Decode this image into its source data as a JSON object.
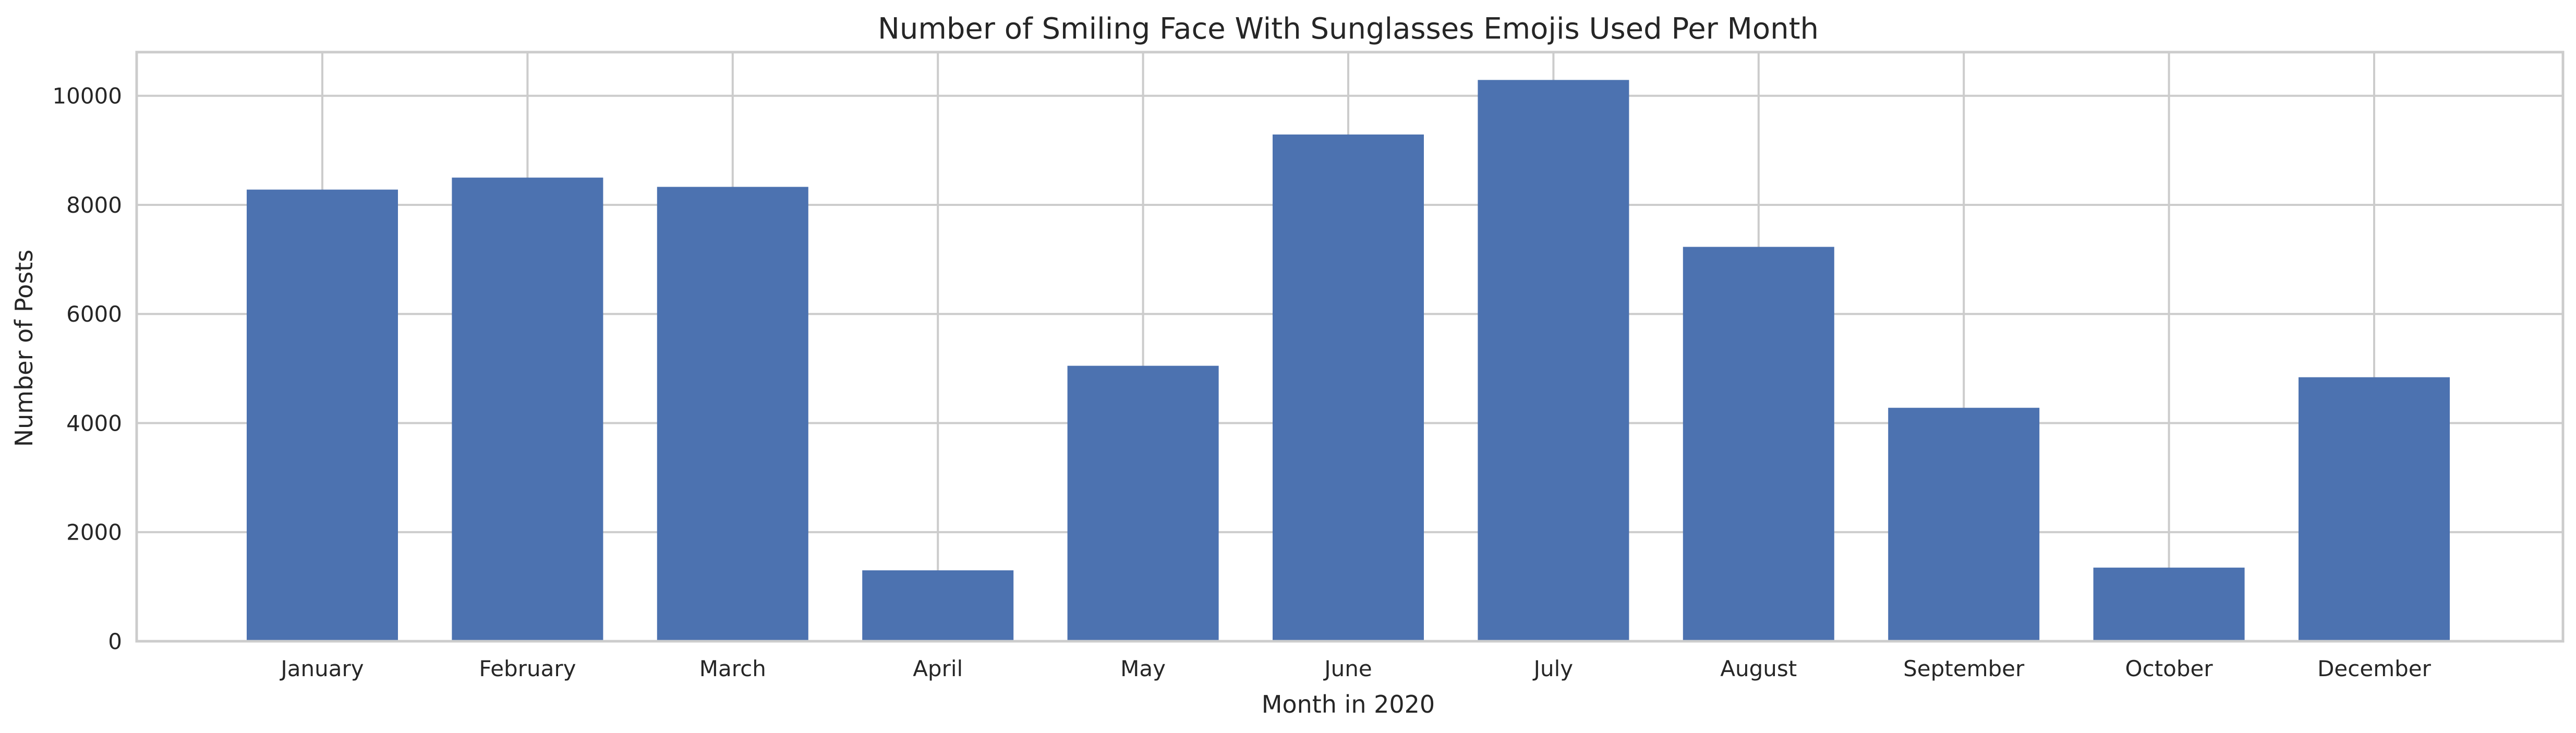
{
  "chart_data": {
    "type": "bar",
    "title": "Number of Smiling Face With Sunglasses Emojis Used Per Month",
    "xlabel": "Month in 2020",
    "ylabel": "Number of Posts",
    "categories": [
      "January",
      "February",
      "March",
      "April",
      "May",
      "June",
      "July",
      "August",
      "September",
      "October",
      "December"
    ],
    "values": [
      8280,
      8500,
      8330,
      1300,
      5050,
      9290,
      10290,
      7230,
      4280,
      1350,
      4840
    ],
    "ylim": [
      0,
      10800
    ],
    "yticks": [
      0,
      2000,
      4000,
      6000,
      8000,
      10000
    ],
    "grid": true,
    "bar_color": "#4c72b0",
    "background": "#ffffff"
  }
}
